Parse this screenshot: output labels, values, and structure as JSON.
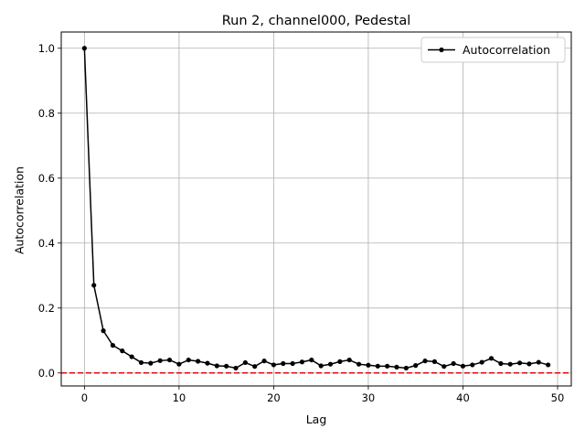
{
  "chart_data": {
    "type": "line",
    "title": "Run 2, channel000, Pedestal",
    "xlabel": "Lag",
    "ylabel": "Autocorrelation",
    "xlim": [
      -2.45,
      51.45
    ],
    "ylim": [
      -0.04,
      1.05
    ],
    "grid": true,
    "legend_position": "top-right",
    "x_ticks": [
      0,
      10,
      20,
      30,
      40,
      50
    ],
    "y_ticks": [
      0.0,
      0.2,
      0.4,
      0.6,
      0.8,
      1.0
    ],
    "x_tick_labels": [
      "0",
      "10",
      "20",
      "30",
      "40",
      "50"
    ],
    "y_tick_labels": [
      "0.0",
      "0.2",
      "0.4",
      "0.6",
      "0.8",
      "1.0"
    ],
    "reference_line": {
      "y": 0.0,
      "color": "#ff0000",
      "style": "dashed"
    },
    "series": [
      {
        "name": "Autocorrelation",
        "color": "#000000",
        "marker": "circle",
        "x": [
          0,
          1,
          2,
          3,
          4,
          5,
          6,
          7,
          8,
          9,
          10,
          11,
          12,
          13,
          14,
          15,
          16,
          17,
          18,
          19,
          20,
          21,
          22,
          23,
          24,
          25,
          26,
          27,
          28,
          29,
          30,
          31,
          32,
          33,
          34,
          35,
          36,
          37,
          38,
          39,
          40,
          41,
          42,
          43,
          44,
          45,
          46,
          47,
          48,
          49
        ],
        "values": [
          1.0,
          0.27,
          0.13,
          0.085,
          0.068,
          0.05,
          0.032,
          0.03,
          0.038,
          0.04,
          0.027,
          0.04,
          0.036,
          0.03,
          0.022,
          0.021,
          0.015,
          0.032,
          0.02,
          0.037,
          0.025,
          0.029,
          0.029,
          0.034,
          0.04,
          0.022,
          0.027,
          0.035,
          0.04,
          0.027,
          0.024,
          0.021,
          0.021,
          0.018,
          0.015,
          0.023,
          0.037,
          0.035,
          0.02,
          0.029,
          0.021,
          0.025,
          0.033,
          0.045,
          0.029,
          0.027,
          0.031,
          0.028,
          0.033,
          0.025
        ]
      }
    ]
  }
}
